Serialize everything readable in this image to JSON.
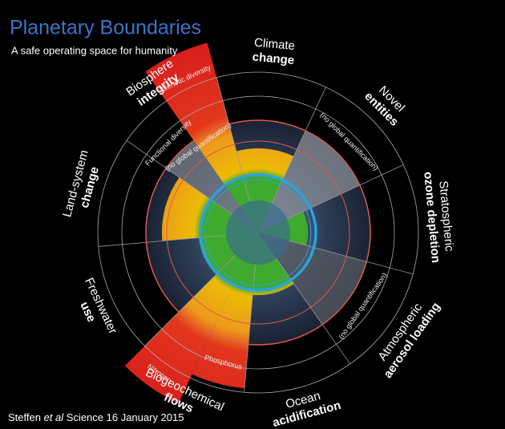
{
  "header": {
    "title": "Planetary Boundaries",
    "subtitle": "A safe operating space for humanity"
  },
  "sectors": [
    {
      "label_light": "Climate",
      "label_bold": "change"
    },
    {
      "label_light": "Novel",
      "label_bold": "entities",
      "note": "(no global quantification)"
    },
    {
      "label_light": "Stratospheric",
      "label_bold": "ozone depletion"
    },
    {
      "label_light": "Atmospheric",
      "label_bold": "aerosol loading",
      "note": "(no global quantification)"
    },
    {
      "label_light": "Ocean",
      "label_bold": "acidification"
    },
    {
      "label_light": "Biogeochemical",
      "label_bold": "flows",
      "parts": [
        "Phosphorus",
        "Nitrogen"
      ]
    },
    {
      "label_light": "Freshwater",
      "label_bold": "use"
    },
    {
      "label_light": "Land-system",
      "label_bold": "change"
    },
    {
      "label_light": "Biosphere",
      "label_bold": "integrity",
      "parts": [
        "Functional diversity",
        "Genetic diversity"
      ],
      "note": "(no global quantification)"
    }
  ],
  "credit": {
    "author": "Steffen ",
    "etal": "et al",
    "source": " Science 16 January 2015"
  }
}
